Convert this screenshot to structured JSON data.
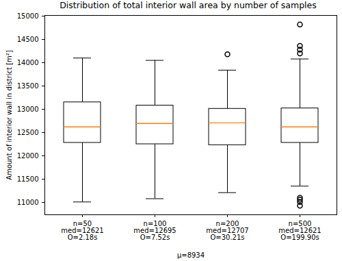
{
  "chart_data": {
    "type": "box",
    "title": "Distribution of total interior wall area by number of samples",
    "x_label": "μ=8934",
    "y_label": "Amount of interior wall in district [m²]",
    "categories": [
      "n=50\nmed=12621\nO=2.18s",
      "n=100\nmed=12695\nO=7.52s",
      "n=200\nmed=12707\nO=30.21s",
      "n=500\nmed=12621\nO=199.90s"
    ],
    "boxes": [
      {
        "whisker_low": 11010,
        "q1": 12280,
        "median": 12621,
        "q3": 13150,
        "whisker_high": 14100,
        "outliers": []
      },
      {
        "whisker_low": 11080,
        "q1": 12250,
        "median": 12695,
        "q3": 13080,
        "whisker_high": 14050,
        "outliers": []
      },
      {
        "whisker_low": 11210,
        "q1": 12230,
        "median": 12707,
        "q3": 13010,
        "whisker_high": 13840,
        "outliers": [
          14180
        ]
      },
      {
        "whisker_low": 11350,
        "q1": 12280,
        "median": 12621,
        "q3": 13020,
        "whisker_high": 14080,
        "outliers": [
          14200,
          14280,
          14360,
          14820,
          11100,
          11060,
          11010,
          10930
        ]
      }
    ],
    "color": "#ff7f0e",
    "ylim": [
      10735,
      15015
    ],
    "yticks": [
      11000,
      11500,
      12000,
      12500,
      13000,
      13500,
      14000,
      14500,
      15000
    ],
    "grid": false
  }
}
